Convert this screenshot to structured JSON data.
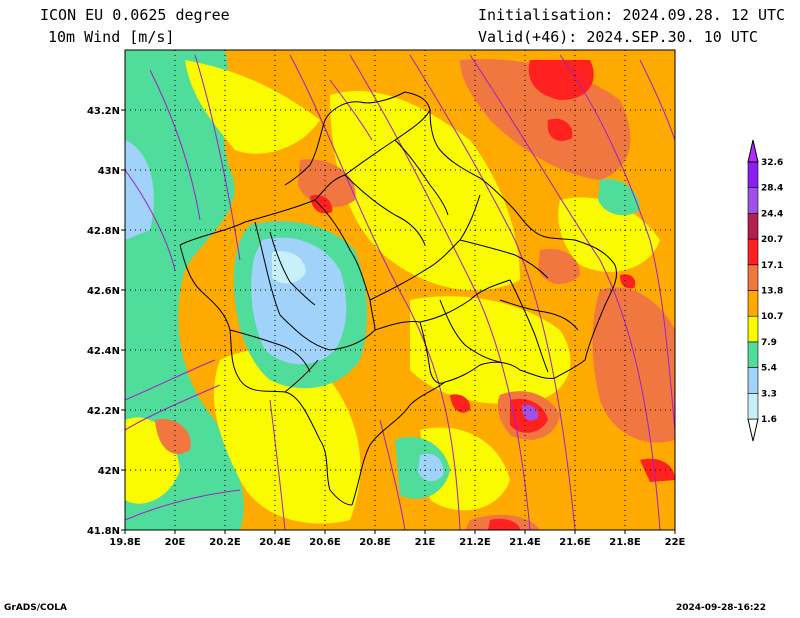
{
  "header": {
    "model": "ICON EU 0.0625 degree",
    "variable": "10m Wind [m/s]",
    "init": "Initialisation: 2024.09.28. 12 UTC",
    "valid": "Valid(+46): 2024.SEP.30. 10 UTC"
  },
  "footer": {
    "credit": "GrADS/COLA",
    "timestamp": "2024-09-28-16:22"
  },
  "axes": {
    "x_ticks": [
      "19.8E",
      "20E",
      "20.2E",
      "20.4E",
      "20.6E",
      "20.8E",
      "21E",
      "21.2E",
      "21.4E",
      "21.6E",
      "21.8E",
      "22E"
    ],
    "x_values": [
      19.8,
      20.0,
      20.2,
      20.4,
      20.6,
      20.8,
      21.0,
      21.2,
      21.4,
      21.6,
      21.8,
      22.0
    ],
    "y_ticks": [
      "41.8N",
      "42N",
      "42.2N",
      "42.4N",
      "42.6N",
      "42.8N",
      "43N",
      "43.2N"
    ],
    "y_values": [
      41.8,
      42.0,
      42.2,
      42.4,
      42.6,
      42.8,
      43.0,
      43.2
    ],
    "lon_range": [
      19.8,
      22.0
    ],
    "lat_range": [
      41.8,
      43.4
    ],
    "grid": "dotted"
  },
  "colorbar": {
    "labels": [
      "1.6",
      "3.3",
      "5.4",
      "7.9",
      "10.7",
      "13.8",
      "17.1",
      "20.7",
      "24.4",
      "28.4",
      "32.6"
    ],
    "colors": [
      "#ffffff",
      "#c8f0f8",
      "#a0d2fa",
      "#50dc9a",
      "#fafa00",
      "#ffaa00",
      "#f07840",
      "#ff2020",
      "#b41e50",
      "#a050e6",
      "#8c1ef0",
      "#b42aff"
    ]
  },
  "colors": {
    "frame": "#000000",
    "streamline": "#a020c8",
    "border": "#000000"
  }
}
